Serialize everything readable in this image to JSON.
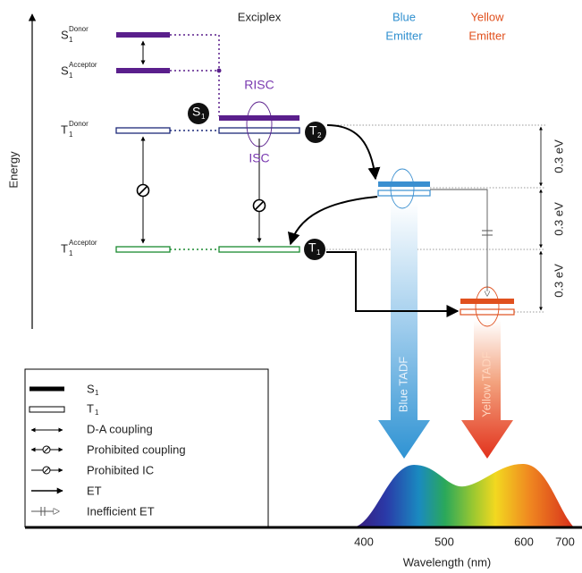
{
  "energy_axis": "Energy",
  "columns": {
    "exciplex": "Exciplex",
    "blue_emitter": [
      "Blue",
      "Emitter"
    ],
    "yellow_emitter": [
      "Yellow",
      "Emitter"
    ]
  },
  "levels": [
    {
      "base": "S",
      "sub": "1",
      "sup": "Donor"
    },
    {
      "base": "S",
      "sub": "1",
      "sup": "Acceptor"
    },
    {
      "base": "T",
      "sub": "1",
      "sup": "Donor"
    },
    {
      "base": "T",
      "sub": "1",
      "sup": "Acceptor"
    }
  ],
  "processes": {
    "risc": "RISC",
    "isc": "ISC"
  },
  "badges": [
    {
      "base": "S",
      "sub": "1"
    },
    {
      "base": "T",
      "sub": "2"
    },
    {
      "base": "T",
      "sub": "1"
    }
  ],
  "gaps": [
    "0.3 eV",
    "0.3 eV",
    "0.3 eV"
  ],
  "emission": [
    "Blue TADF",
    "Yellow TADF"
  ],
  "legend": [
    {
      "label": "S",
      "sub": "1"
    },
    {
      "label": "T",
      "sub": "1"
    },
    {
      "label": "D-A coupling"
    },
    {
      "label": "Prohibited coupling"
    },
    {
      "label": "Prohibited IC"
    },
    {
      "label": "ET"
    },
    {
      "label": "Inefficient ET"
    }
  ],
  "spectrum": {
    "xlabel": "Wavelength (nm)",
    "xticks": [
      400,
      500,
      600,
      700
    ]
  }
}
